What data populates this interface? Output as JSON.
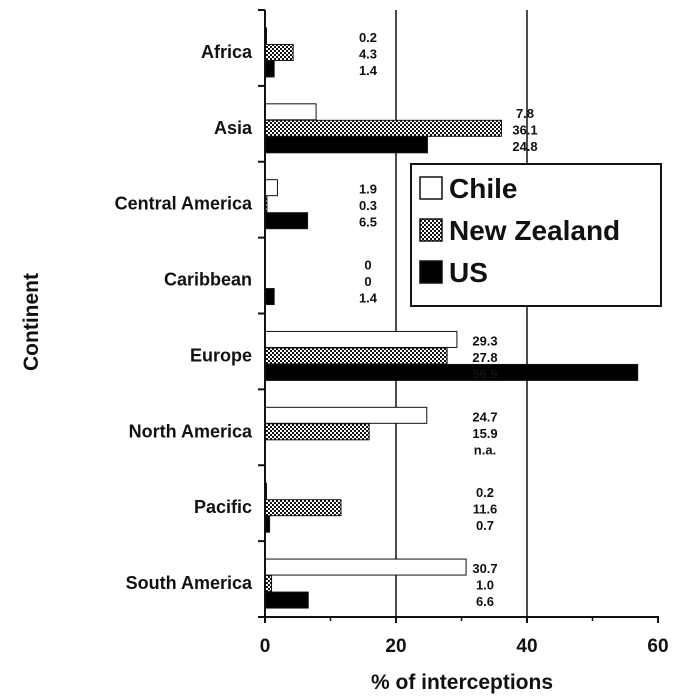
{
  "chart_data": {
    "type": "bar",
    "orientation": "horizontal",
    "xlabel": "% of interceptions",
    "ylabel": "Continent",
    "xlim": [
      0,
      60
    ],
    "xticks": [
      "0",
      "20",
      "40",
      "60"
    ],
    "grid": "vertical lines at 20 and 40",
    "legend_position": "right",
    "categories": [
      "Africa",
      "Asia",
      "Central America",
      "Caribbean",
      "Europe",
      "North America",
      "Pacific",
      "South America"
    ],
    "series": [
      {
        "name": "Chile",
        "fill": "#ffffff",
        "values": [
          0.2,
          7.8,
          1.9,
          0,
          29.3,
          24.7,
          0.2,
          30.7
        ],
        "labels": [
          "0.2",
          "7.8",
          "1.9",
          "0",
          "29.3",
          "24.7",
          "0.2",
          "30.7"
        ]
      },
      {
        "name": "New Zealand",
        "fill": "checkered",
        "values": [
          4.3,
          36.1,
          0.3,
          0,
          27.8,
          15.9,
          11.6,
          1.0
        ],
        "labels": [
          "4.3",
          "36.1",
          "0.3",
          "0",
          "27.8",
          "15.9",
          "11.6",
          "1.0"
        ]
      },
      {
        "name": "US",
        "fill": "#000000",
        "values": [
          1.4,
          24.8,
          6.5,
          1.4,
          56.9,
          null,
          0.7,
          6.6
        ],
        "labels": [
          "1.4",
          "24.8",
          "6.5",
          "1.4",
          "56.9",
          "n.a.",
          "0.7",
          "6.6"
        ]
      }
    ]
  }
}
